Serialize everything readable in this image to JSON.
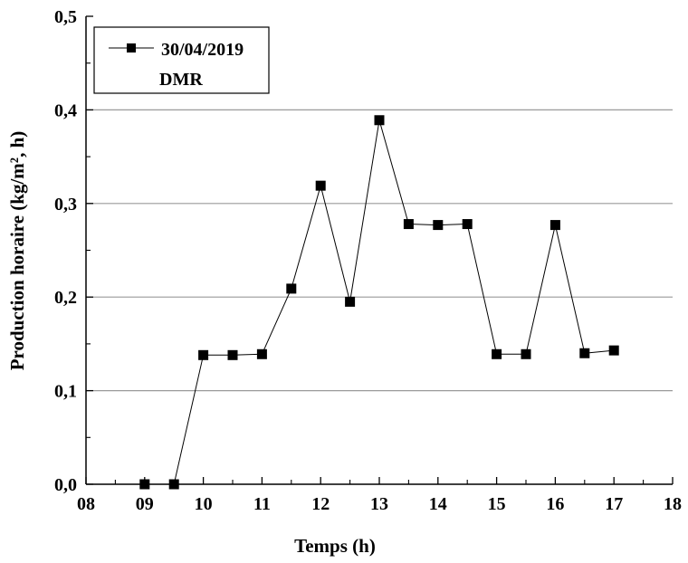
{
  "chart_data": {
    "type": "line",
    "xlabel": "Temps (h)",
    "ylabel": "Production horaire (kg/m², h)",
    "xlim": [
      8,
      18
    ],
    "ylim": [
      0,
      0.5
    ],
    "x_tick_labels": [
      "08",
      "09",
      "10",
      "11",
      "12",
      "13",
      "14",
      "15",
      "16",
      "17",
      "18"
    ],
    "y_tick_labels": [
      "0,0",
      "0,1",
      "0,2",
      "0,3",
      "0,4",
      "0,5"
    ],
    "grid": "horizontal",
    "legend_position": "top-left",
    "legend": {
      "line1": "30/04/2019",
      "line2": "DMR"
    },
    "series": [
      {
        "name": "30/04/2019",
        "x": [
          9,
          9.5,
          10,
          10.5,
          11,
          11.5,
          12,
          12.5,
          13,
          13.5,
          14,
          14.5,
          15,
          15.5,
          16,
          16.5,
          17
        ],
        "y": [
          0.0,
          0.0,
          0.138,
          0.138,
          0.139,
          0.209,
          0.319,
          0.195,
          0.389,
          0.278,
          0.277,
          0.278,
          0.139,
          0.139,
          0.277,
          0.14,
          0.143
        ],
        "connected": [
          true,
          true,
          true,
          true,
          true,
          true,
          true,
          true,
          true,
          true,
          true,
          true,
          true,
          true,
          true,
          true,
          true
        ]
      }
    ],
    "colors": {
      "line": "#000000",
      "marker": "#000000",
      "grid": "#9a9a9a"
    }
  }
}
